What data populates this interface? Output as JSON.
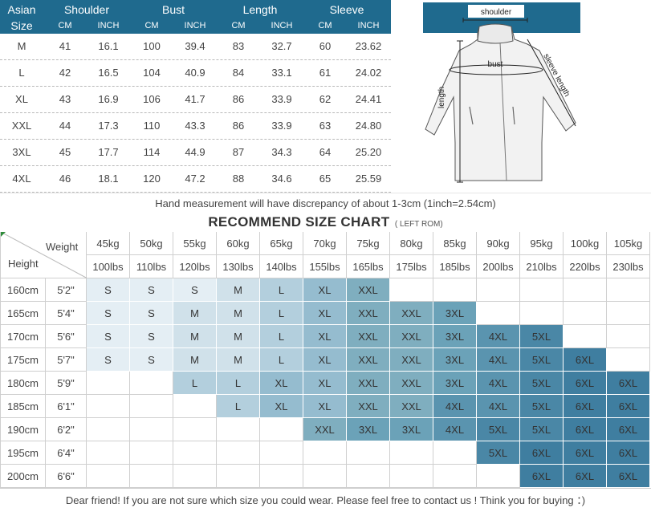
{
  "measure": {
    "header": {
      "asian": "Asian",
      "size": "Size",
      "groups": [
        "Shoulder",
        "Bust",
        "Length",
        "Sleeve"
      ],
      "units": [
        "CM",
        "INCH",
        "CM",
        "INCH",
        "CM",
        "INCH",
        "CM",
        "INCH"
      ]
    },
    "rows": [
      {
        "size": "M",
        "values": [
          "41",
          "16.1",
          "100",
          "39.4",
          "83",
          "32.7",
          "60",
          "23.62"
        ]
      },
      {
        "size": "L",
        "values": [
          "42",
          "16.5",
          "104",
          "40.9",
          "84",
          "33.1",
          "61",
          "24.02"
        ]
      },
      {
        "size": "XL",
        "values": [
          "43",
          "16.9",
          "106",
          "41.7",
          "86",
          "33.9",
          "62",
          "24.41"
        ]
      },
      {
        "size": "XXL",
        "values": [
          "44",
          "17.3",
          "110",
          "43.3",
          "86",
          "33.9",
          "63",
          "24.80"
        ]
      },
      {
        "size": "3XL",
        "values": [
          "45",
          "17.7",
          "114",
          "44.9",
          "87",
          "34.3",
          "64",
          "25.20"
        ]
      },
      {
        "size": "4XL",
        "values": [
          "46",
          "18.1",
          "120",
          "47.2",
          "88",
          "34.6",
          "65",
          "25.59"
        ]
      }
    ]
  },
  "illustration": {
    "shoulder": "shoulder",
    "bust": "bust",
    "length": "length",
    "sleeve": "sleeve length"
  },
  "note": "Hand measurement will have discrepancy of about 1-3cm (1inch=2.54cm)",
  "recommend": {
    "title": "RECOMMEND SIZE CHART",
    "subtitle": "( LEFT ROM)",
    "weight_label": "Weight",
    "height_label": "Height",
    "weights_kg": [
      "45kg",
      "50kg",
      "55kg",
      "60kg",
      "65kg",
      "70kg",
      "75kg",
      "80kg",
      "85kg",
      "90kg",
      "95kg",
      "100kg",
      "105kg"
    ],
    "weights_lbs": [
      "100lbs",
      "110lbs",
      "120lbs",
      "130lbs",
      "140lbs",
      "155lbs",
      "165lbs",
      "175lbs",
      "185lbs",
      "200lbs",
      "210lbs",
      "220lbs",
      "230lbs"
    ],
    "rows": [
      {
        "cm": "160cm",
        "ft": "5'2\"",
        "cells": [
          "S",
          "S",
          "S",
          "M",
          "L",
          "XL",
          "XXL",
          "",
          "",
          "",
          "",
          "",
          ""
        ]
      },
      {
        "cm": "165cm",
        "ft": "5'4\"",
        "cells": [
          "S",
          "S",
          "M",
          "M",
          "L",
          "XL",
          "XXL",
          "XXL",
          "3XL",
          "",
          "",
          "",
          ""
        ]
      },
      {
        "cm": "170cm",
        "ft": "5'6\"",
        "cells": [
          "S",
          "S",
          "M",
          "M",
          "L",
          "XL",
          "XXL",
          "XXL",
          "3XL",
          "4XL",
          "5XL",
          "",
          ""
        ]
      },
      {
        "cm": "175cm",
        "ft": "5'7\"",
        "cells": [
          "S",
          "S",
          "M",
          "M",
          "L",
          "XL",
          "XXL",
          "XXL",
          "3XL",
          "4XL",
          "5XL",
          "6XL",
          ""
        ]
      },
      {
        "cm": "180cm",
        "ft": "5'9\"",
        "cells": [
          "",
          "",
          "L",
          "L",
          "XL",
          "XL",
          "XXL",
          "XXL",
          "3XL",
          "4XL",
          "5XL",
          "6XL",
          "6XL"
        ]
      },
      {
        "cm": "185cm",
        "ft": "6'1\"",
        "cells": [
          "",
          "",
          "",
          "L",
          "XL",
          "XL",
          "XXL",
          "XXL",
          "4XL",
          "4XL",
          "5XL",
          "6XL",
          "6XL"
        ]
      },
      {
        "cm": "190cm",
        "ft": "6'2\"",
        "cells": [
          "",
          "",
          "",
          "",
          "",
          "XXL",
          "3XL",
          "3XL",
          "4XL",
          "5XL",
          "5XL",
          "6XL",
          "6XL"
        ]
      },
      {
        "cm": "195cm",
        "ft": "6'4\"",
        "cells": [
          "",
          "",
          "",
          "",
          "",
          "",
          "",
          "",
          "",
          "5XL",
          "6XL",
          "6XL",
          "6XL"
        ]
      },
      {
        "cm": "200cm",
        "ft": "6'6\"",
        "cells": [
          "",
          "",
          "",
          "",
          "",
          "",
          "",
          "",
          "",
          "",
          "6XL",
          "6XL",
          "6XL"
        ]
      }
    ]
  },
  "size_colors": {
    "S": "#e4eef4",
    "M": "#d0e1ea",
    "L": "#b3cfdd",
    "XL": "#95bccf",
    "XXL": "#7faebf",
    "3XL": "#6ba2b8",
    "4XL": "#5a94af",
    "5XL": "#4a87a6",
    "6XL": "#3f7ea0"
  },
  "accent_color": "#1f6a8e",
  "footer": "Dear friend! If you are not sure which size you could wear. Please feel free to contact us ! Think you for buying ：)"
}
